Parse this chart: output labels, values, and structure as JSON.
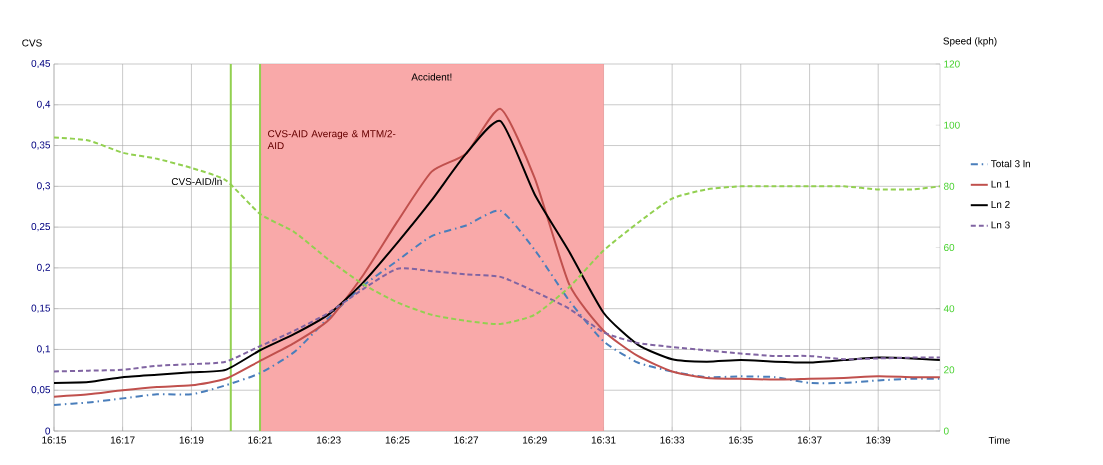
{
  "chart_data": {
    "type": "line",
    "xlabel": "Time",
    "ylabel": "CVS",
    "y2label": "Speed (kph)",
    "x": [
      16.25,
      16.2667,
      16.2833,
      16.3,
      16.3167,
      16.3333,
      16.35,
      16.3667,
      16.3833,
      16.4,
      16.4167,
      16.4333,
      16.45,
      16.4667,
      16.4833,
      16.5,
      16.5167,
      16.5333,
      16.55,
      16.5667,
      16.5833,
      16.6,
      16.6167,
      16.6333,
      16.65,
      16.6667,
      16.68
    ],
    "series": [
      {
        "name": "Total 3 ln",
        "color": "#4a7ebb",
        "line_style": "dashdot",
        "values": [
          0.032,
          0.035,
          0.04,
          0.045,
          0.045,
          0.056,
          0.071,
          0.097,
          0.139,
          0.178,
          0.209,
          0.239,
          0.252,
          0.27,
          0.222,
          0.16,
          0.11,
          0.084,
          0.073,
          0.066,
          0.067,
          0.066,
          0.059,
          0.059,
          0.062,
          0.064,
          0.064
        ]
      },
      {
        "name": "Ln 1",
        "color": "#c0504d",
        "line_style": "solid",
        "values": [
          0.042,
          0.045,
          0.05,
          0.054,
          0.056,
          0.064,
          0.086,
          0.108,
          0.136,
          0.191,
          0.257,
          0.318,
          0.34,
          0.395,
          0.31,
          0.18,
          0.123,
          0.092,
          0.073,
          0.065,
          0.064,
          0.063,
          0.064,
          0.065,
          0.067,
          0.066,
          0.066
        ]
      },
      {
        "name": "Ln 2",
        "color": "#000000",
        "line_style": "solid",
        "values": [
          0.059,
          0.06,
          0.066,
          0.069,
          0.072,
          0.075,
          0.099,
          0.119,
          0.143,
          0.182,
          0.231,
          0.283,
          0.34,
          0.38,
          0.29,
          0.22,
          0.145,
          0.106,
          0.088,
          0.085,
          0.087,
          0.085,
          0.084,
          0.087,
          0.09,
          0.089,
          0.087
        ]
      },
      {
        "name": "Ln 3",
        "color": "#8064a2",
        "line_style": "dashed",
        "values": [
          0.073,
          0.074,
          0.075,
          0.08,
          0.082,
          0.085,
          0.104,
          0.123,
          0.145,
          0.174,
          0.199,
          0.196,
          0.192,
          0.189,
          0.171,
          0.15,
          0.121,
          0.108,
          0.103,
          0.099,
          0.095,
          0.092,
          0.092,
          0.088,
          0.089,
          0.09,
          0.09
        ]
      },
      {
        "color": "#92d050",
        "line_style": "dashed",
        "axis": "y2",
        "values": [
          96,
          95,
          91,
          89,
          86,
          82,
          71,
          65,
          56,
          48,
          42,
          38,
          36,
          35,
          38,
          47,
          59,
          68,
          76,
          79,
          80,
          80,
          80,
          80,
          79,
          79,
          80
        ]
      }
    ],
    "xlim": [
      16.25,
      16.68
    ],
    "xticks": [
      {
        "value": 16.25,
        "label": "16:15"
      },
      {
        "value": 16.2833,
        "label": "16:17"
      },
      {
        "value": 16.3167,
        "label": "16:19"
      },
      {
        "value": 16.35,
        "label": "16:21"
      },
      {
        "value": 16.3833,
        "label": "16:23"
      },
      {
        "value": 16.4167,
        "label": "16:25"
      },
      {
        "value": 16.45,
        "label": "16:27"
      },
      {
        "value": 16.4833,
        "label": "16:29"
      },
      {
        "value": 16.5167,
        "label": "16:31"
      },
      {
        "value": 16.55,
        "label": "16:33"
      },
      {
        "value": 16.5833,
        "label": "16:35"
      },
      {
        "value": 16.6167,
        "label": "16:37"
      },
      {
        "value": 16.65,
        "label": "16:39"
      }
    ],
    "ylim": [
      0,
      0.45
    ],
    "yticks": [
      0,
      {
        "value": 0.05,
        "label": "0,05"
      },
      {
        "value": 0.1,
        "label": "0,1"
      },
      {
        "value": 0.15,
        "label": "0,15"
      },
      {
        "value": 0.2,
        "label": "0,2"
      },
      {
        "value": 0.25,
        "label": "0,25"
      },
      {
        "value": 0.3,
        "label": "0,3"
      },
      {
        "value": 0.35,
        "label": "0,35"
      },
      {
        "value": 0.4,
        "label": "0,4"
      },
      {
        "value": 0.45,
        "label": "0,45"
      }
    ],
    "y2lim": [
      0,
      120
    ],
    "y2ticks": [
      0,
      20,
      40,
      60,
      80,
      100,
      120
    ],
    "bands": [
      {
        "axis": "x",
        "from": 16.35,
        "to": 16.5167,
        "label": "Accident!",
        "color": "#f9a9a9"
      }
    ],
    "ref_lines": [
      {
        "axis": "x",
        "value": 16.3358,
        "label": "CVS-AID/ln",
        "color": "#92d050"
      },
      {
        "axis": "x",
        "value": 16.35,
        "label": "CVS-AID Average & MTM/2-AID",
        "color": "#92d050"
      }
    ],
    "grid": true,
    "legend": "right"
  }
}
